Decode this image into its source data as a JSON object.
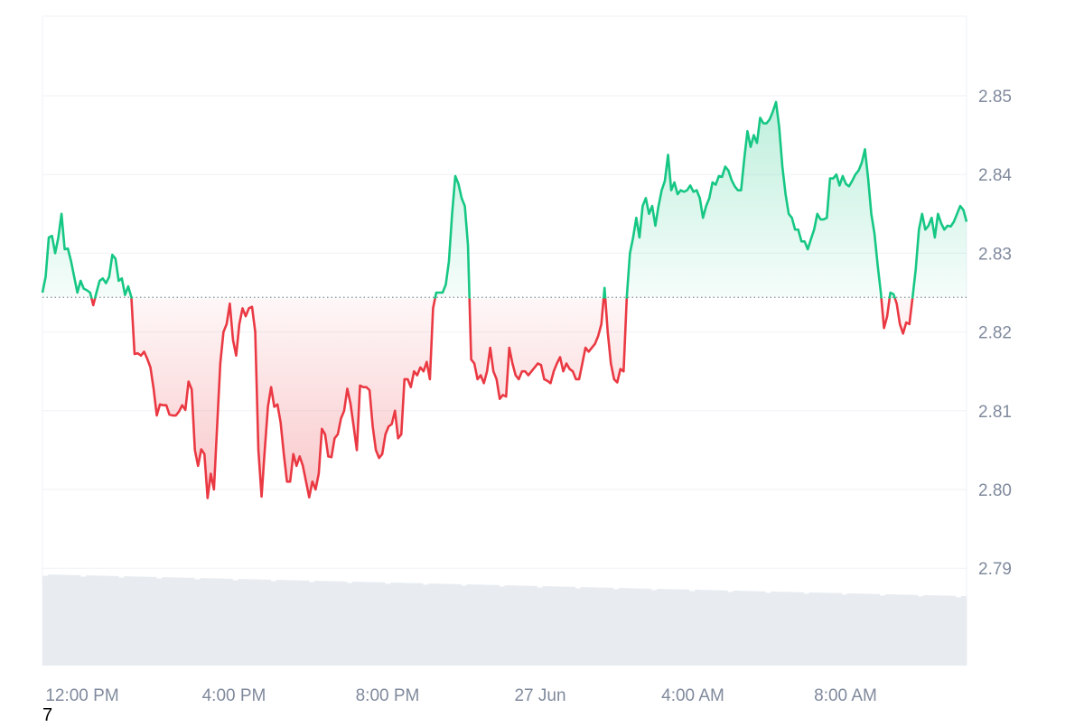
{
  "chart_data": {
    "type": "line",
    "baseline": 2.8244,
    "ylim": [
      2.775,
      2.86
    ],
    "y_ticks": [
      "2.79",
      "2.80",
      "2.81",
      "2.82",
      "2.83",
      "2.84",
      "2.85"
    ],
    "x_ticks": [
      "12:00 PM",
      "4:00 PM",
      "8:00 PM",
      "27 Jun",
      "4:00 AM",
      "8:00 AM"
    ],
    "stray_label": "7",
    "grid": true,
    "colors": {
      "up": "#16c784",
      "down": "#ea3943",
      "grid": "#eff2f5",
      "axis_text": "#808a9d",
      "volume": "#e8ecf1"
    },
    "series": [
      {
        "values": [
          2.825,
          2.827,
          2.832,
          2.8322,
          2.83,
          2.832,
          2.835,
          2.8305,
          2.8306,
          2.829,
          2.827,
          2.825,
          2.8265,
          2.8255,
          2.8253,
          2.825,
          2.8234,
          2.825,
          2.8265,
          2.8268,
          2.8262,
          2.827,
          2.8298,
          2.8293,
          2.8265,
          2.8268,
          2.8247,
          2.8258,
          2.8244,
          2.8172,
          2.8173,
          2.817,
          2.8175,
          2.8166,
          2.8155,
          2.8128,
          2.8094,
          2.8108,
          2.8107,
          2.8107,
          2.8095,
          2.8094,
          2.8094,
          2.8099,
          2.8107,
          2.8101,
          2.8137,
          2.8127,
          2.805,
          2.803,
          2.8051,
          2.8045,
          2.7989,
          2.802,
          2.8,
          2.808,
          2.816,
          2.82,
          2.821,
          2.8236,
          2.819,
          2.817,
          2.821,
          2.823,
          2.822,
          2.823,
          2.8232,
          2.82,
          2.805,
          2.7991,
          2.805,
          2.8105,
          2.813,
          2.8105,
          2.8108,
          2.8085,
          2.8045,
          2.801,
          2.801,
          2.8045,
          2.803,
          2.8042,
          2.803,
          2.801,
          2.799,
          2.801,
          2.8,
          2.802,
          2.8077,
          2.807,
          2.8042,
          2.8041,
          2.8065,
          2.807,
          2.809,
          2.81,
          2.8128,
          2.8109,
          2.808,
          2.805,
          2.8132,
          2.813,
          2.813,
          2.8126,
          2.808,
          2.805,
          2.804,
          2.8045,
          2.807,
          2.808,
          2.8083,
          2.81,
          2.8065,
          2.807,
          2.814,
          2.814,
          2.813,
          2.815,
          2.8145,
          2.8155,
          2.815,
          2.8162,
          2.814,
          2.823,
          2.825,
          2.825,
          2.825,
          2.826,
          2.829,
          2.835,
          2.8398,
          2.8388,
          2.837,
          2.836,
          2.831,
          2.8165,
          2.816,
          2.814,
          2.8145,
          2.8135,
          2.815,
          2.818,
          2.815,
          2.814,
          2.8115,
          2.812,
          2.8118,
          2.818,
          2.816,
          2.8145,
          2.814,
          2.815,
          2.815,
          2.8145,
          2.815,
          2.8155,
          2.816,
          2.8158,
          2.814,
          2.8138,
          2.8135,
          2.815,
          2.816,
          2.8168,
          2.815,
          2.816,
          2.8153,
          2.815,
          2.814,
          2.814,
          2.816,
          2.818,
          2.8175,
          2.818,
          2.8185,
          2.8195,
          2.821,
          2.8256,
          2.82,
          2.816,
          2.814,
          2.8136,
          2.8153,
          2.815,
          2.8244,
          2.83,
          2.832,
          2.8345,
          2.832,
          2.836,
          2.837,
          2.835,
          2.836,
          2.8335,
          2.836,
          2.838,
          2.8392,
          2.8425,
          2.838,
          2.839,
          2.8375,
          2.838,
          2.8378,
          2.838,
          2.8386,
          2.8378,
          2.838,
          2.837,
          2.8345,
          2.836,
          2.837,
          2.839,
          2.8387,
          2.8398,
          2.8397,
          2.841,
          2.8405,
          2.8393,
          2.8385,
          2.838,
          2.838,
          2.842,
          2.8455,
          2.8435,
          2.845,
          2.844,
          2.8472,
          2.8465,
          2.8465,
          2.847,
          2.848,
          2.8492,
          2.846,
          2.841,
          2.8375,
          2.835,
          2.8345,
          2.833,
          2.833,
          2.8315,
          2.8315,
          2.8305,
          2.8318,
          2.833,
          2.835,
          2.8343,
          2.8343,
          2.8345,
          2.8395,
          2.8395,
          2.84,
          2.8386,
          2.8398,
          2.8388,
          2.8385,
          2.8392,
          2.84,
          2.8405,
          2.8415,
          2.8432,
          2.8395,
          2.835,
          2.8325,
          2.8285,
          2.825,
          2.8205,
          2.822,
          2.825,
          2.8248,
          2.8236,
          2.821,
          2.8198,
          2.8212,
          2.821,
          2.8244,
          2.828,
          2.833,
          2.835,
          2.833,
          2.8335,
          2.8345,
          2.832,
          2.835,
          2.8338,
          2.833,
          2.8335,
          2.8334,
          2.834,
          2.835,
          2.836,
          2.8355,
          2.834
        ]
      }
    ]
  }
}
